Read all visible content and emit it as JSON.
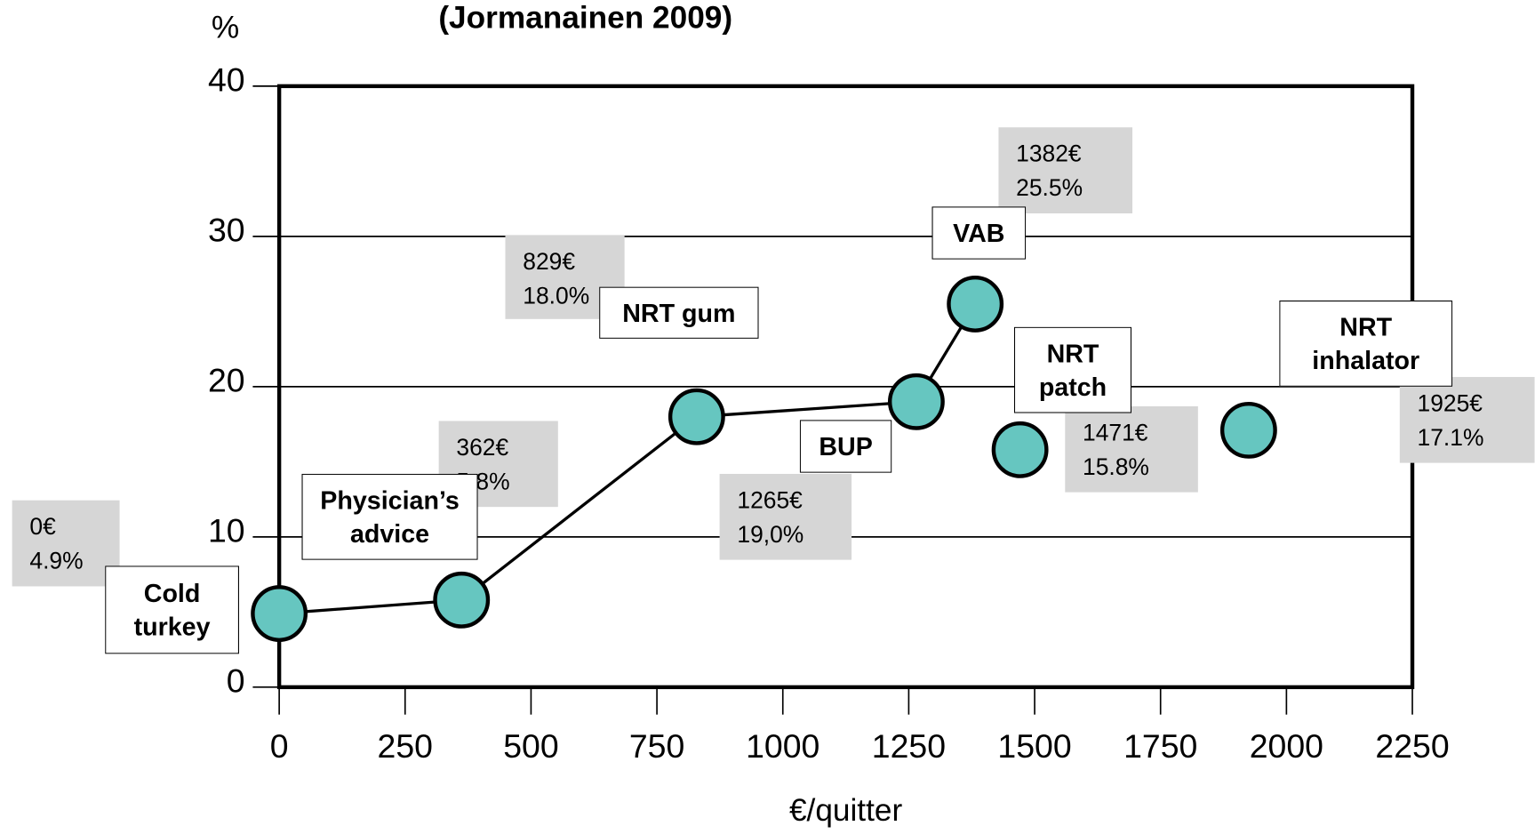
{
  "chart_data": {
    "type": "scatter",
    "title": "(Jormanainen 2009)",
    "y_label": "%",
    "x_label": "€/quitter",
    "xlim": [
      0,
      2250
    ],
    "ylim": [
      0,
      40
    ],
    "xticks": [
      0,
      250,
      500,
      750,
      1000,
      1250,
      1500,
      1750,
      2000,
      2250
    ],
    "yticks": [
      0,
      10,
      20,
      30,
      40
    ],
    "grid": true,
    "marker_color": "#66c6c0",
    "series": [
      {
        "line": true,
        "x": [
          0,
          362,
          829,
          1265,
          1382
        ],
        "values": [
          4.9,
          5.8,
          18.0,
          19.0,
          25.5
        ],
        "labels": [
          "Cold turkey",
          "Physician’s advice",
          "NRT gum",
          "BUP",
          "VAB"
        ],
        "value_labels": [
          "0€ 4.9%",
          "362€ 5.8%",
          "829€ 18.0%",
          "1265€ 19,0%",
          "1382€ 25.5%"
        ]
      },
      {
        "line": false,
        "x": [
          1471,
          1925
        ],
        "values": [
          15.8,
          17.1
        ],
        "labels": [
          "NRT patch",
          "NRT inhalator"
        ],
        "value_labels": [
          "1471€ 15.8%",
          "1925€ 17.1%"
        ]
      }
    ]
  }
}
